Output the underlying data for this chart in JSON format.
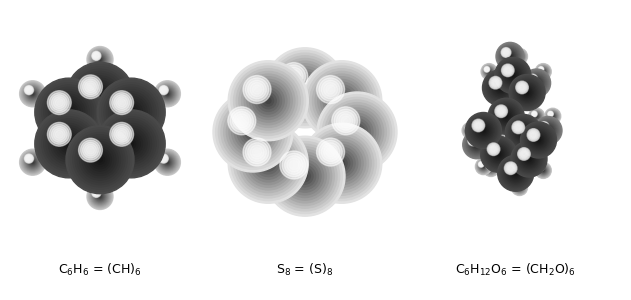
{
  "bg_color": "#ffffff",
  "label1": "C$_6$H$_6$ = (CH)$_6$",
  "label2": "S$_8$ = (S)$_8$",
  "label3": "C$_6$H$_{12}$O$_6$ = (CH$_2$O)$_6$",
  "label1_xf": 0.155,
  "label2_xf": 0.435,
  "label3_xf": 0.755,
  "label_yf": 0.04,
  "font_size": 9,
  "dark_gray": "#4a4a4a",
  "mid_gray": "#808080",
  "light_gray": "#c8c8c8",
  "very_light": "#e2e2e2",
  "white_sphere": "#e8e8e8",
  "stick_color": "#bbbbbb"
}
